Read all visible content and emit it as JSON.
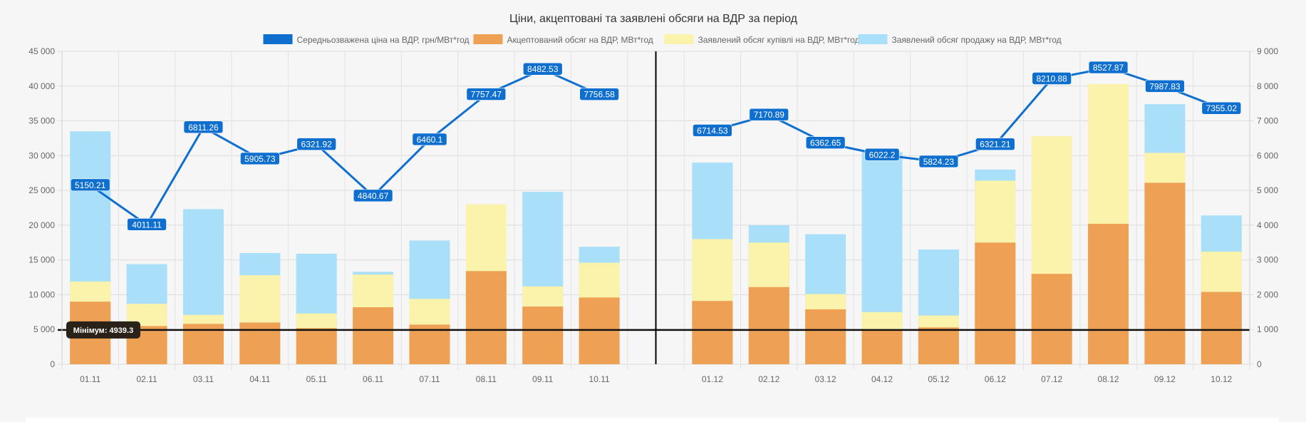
{
  "chart_data": {
    "type": "bar",
    "title": "Ціни, акцептовані та заявлені обсяги на ВДР за період",
    "categories": [
      "01.11",
      "02.11",
      "03.11",
      "04.11",
      "05.11",
      "06.11",
      "07.11",
      "08.11",
      "09.11",
      "10.11",
      "",
      "01.12",
      "02.12",
      "03.12",
      "04.12",
      "05.12",
      "06.12",
      "07.12",
      "08.12",
      "09.12",
      "10.12"
    ],
    "left_axis": {
      "ylim": [
        0,
        45000
      ],
      "ticks": [
        "0",
        "5 000",
        "10 000",
        "15 000",
        "20 000",
        "25 000",
        "30 000",
        "35 000",
        "40 000",
        "45 000"
      ]
    },
    "right_axis": {
      "ylim": [
        0,
        9000
      ],
      "ticks": [
        "0",
        "1 000",
        "2 000",
        "3 000",
        "4 000",
        "5 000",
        "6 000",
        "7 000",
        "8 000",
        "9 000"
      ]
    },
    "grid": true,
    "legend_position": "top",
    "series": [
      {
        "name": "Середньозважена ціна на ВДР, грн/МВт*год",
        "type": "line",
        "axis": "right",
        "color": "#0f6fcf",
        "values": [
          5150.21,
          4011.11,
          6811.26,
          5905.73,
          6321.92,
          4840.67,
          6460.1,
          7757.47,
          8482.53,
          7756.58,
          null,
          6714.53,
          7170.89,
          6362.65,
          6022.2,
          5824.23,
          6321.21,
          8210.88,
          8527.87,
          7987.83,
          7355.02
        ],
        "labels": [
          "5150.21",
          "4011.11",
          "6811.26",
          "5905.73",
          "6321.92",
          "4840.67",
          "6460.1",
          "7757.47",
          "8482.53",
          "7756.58",
          "",
          "6714.53",
          "7170.89",
          "6362.65",
          "6022.2",
          "5824.23",
          "6321.21",
          "8210.88",
          "8527.87",
          "7987.83",
          "7355.02"
        ]
      },
      {
        "name": "Акцептований обсяг на ВДР, МВт*год",
        "type": "bar",
        "axis": "left",
        "color": "#eea055",
        "values": [
          9000,
          5500,
          5800,
          6000,
          5200,
          8200,
          5700,
          13400,
          8300,
          9600,
          null,
          9100,
          11100,
          7900,
          5000,
          5300,
          17500,
          13000,
          20200,
          26100,
          10400
        ]
      },
      {
        "name": "Заявлений обсяг купівлі на ВДР, МВт*год",
        "type": "bar",
        "axis": "left",
        "color": "#fbf3ac",
        "values": [
          11900,
          8700,
          7100,
          12800,
          7300,
          12900,
          9400,
          23000,
          11200,
          14600,
          null,
          18000,
          17500,
          10100,
          7500,
          7000,
          26400,
          32800,
          40300,
          30400,
          16200
        ]
      },
      {
        "name": "Заявлений обсяг продажу на ВДР, МВт*год",
        "type": "bar",
        "axis": "left",
        "color": "#a9dff8",
        "values": [
          33500,
          14400,
          22300,
          16000,
          15900,
          13300,
          17800,
          null,
          24800,
          16900,
          null,
          29000,
          20000,
          18700,
          30500,
          16500,
          28000,
          null,
          null,
          37400,
          21400
        ]
      }
    ],
    "annotations": [
      {
        "type": "horizontal-line",
        "axis": "left",
        "value": 4939.3,
        "label": "Мінімум: 4939.3"
      }
    ]
  }
}
